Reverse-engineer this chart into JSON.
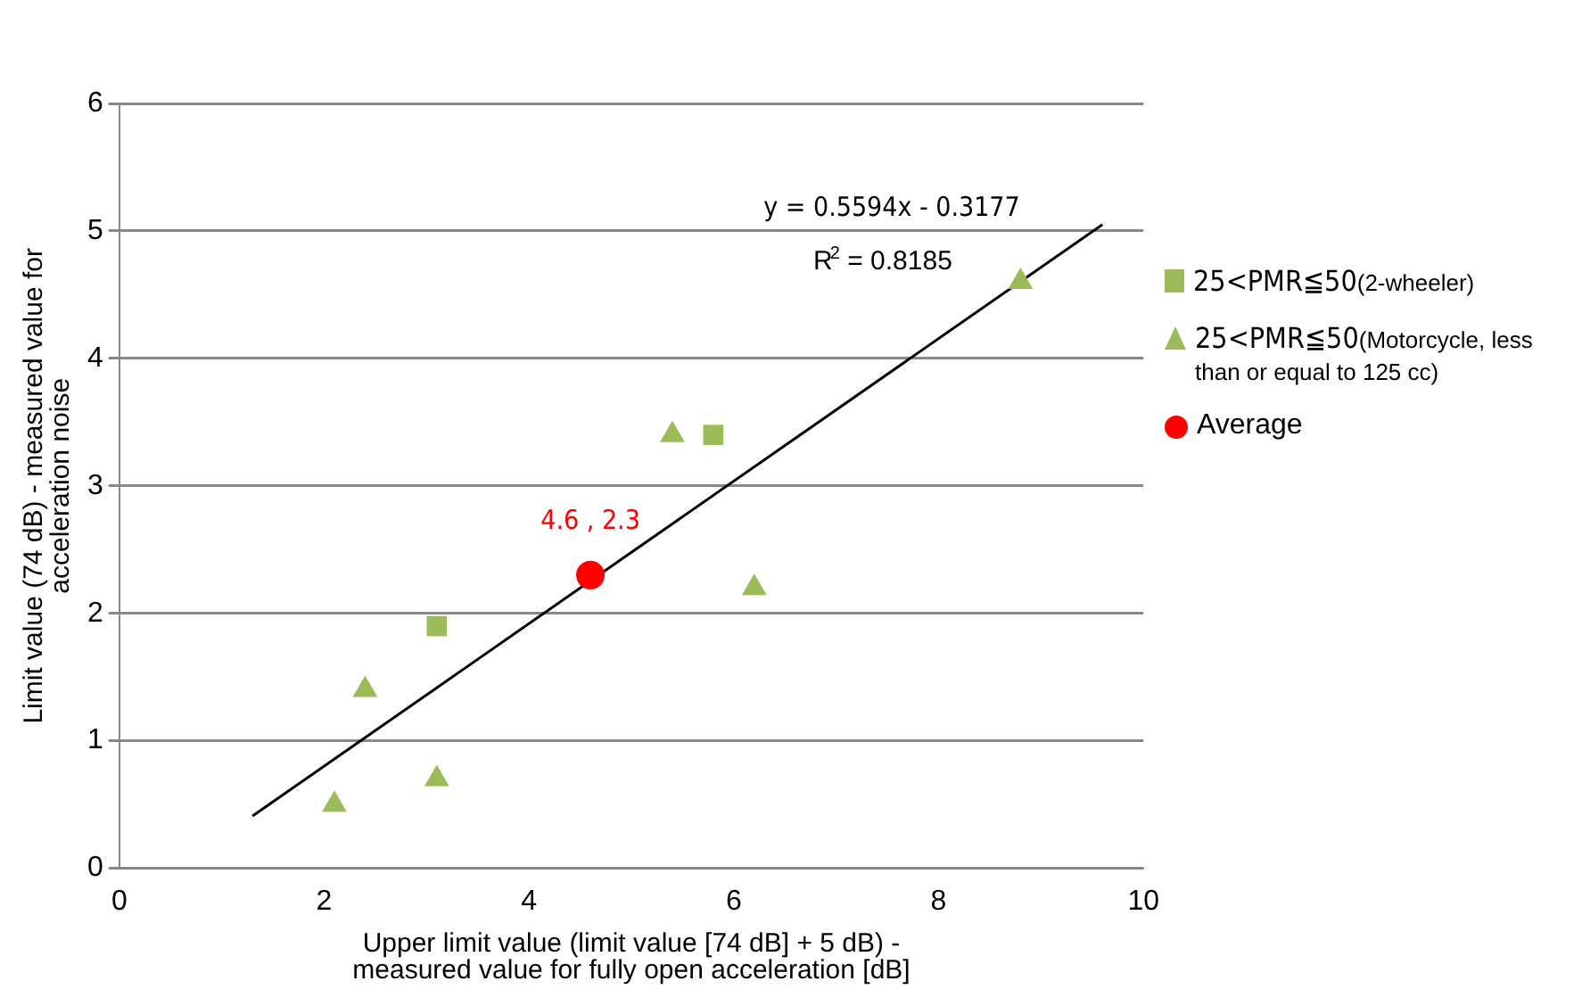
{
  "chart_data": {
    "type": "scatter",
    "xlabel": "Upper limit value (limit value [74 dB] + 5 dB) - measured value for fully open acceleration [dB]",
    "ylabel": "Limit value (74 dB) - measured value for acceleration noise",
    "xlim": [
      0,
      10
    ],
    "xticks": [
      0,
      2,
      4,
      6,
      8,
      10
    ],
    "ylim": [
      0,
      6
    ],
    "yticks": [
      0,
      1,
      2,
      3,
      4,
      5,
      6
    ],
    "grid": "y",
    "legend": "right",
    "series": [
      {
        "name": "25<PMR≦50(2-wheeler)",
        "color": "#9bbb59",
        "marker": "square",
        "x": [
          3.1,
          5.8
        ],
        "values": [
          1.9,
          3.4
        ]
      },
      {
        "name": "25<PMR≦50(Motorcycle, less than or equal to 125 cc)",
        "color": "#9bbb59",
        "marker": "triangle",
        "x": [
          2.4,
          2.1,
          3.1,
          5.4,
          6.2,
          8.8
        ],
        "values": [
          1.4,
          0.5,
          0.7,
          3.4,
          2.2,
          4.6
        ]
      },
      {
        "name": "Average",
        "color": "#ff0000",
        "marker": "circle",
        "x": [
          4.6
        ],
        "values": [
          2.3
        ]
      },
      {
        "type": "line",
        "color": "#000000",
        "marker": "none",
        "line_style": "solid",
        "x": [
          1.3,
          9.6
        ],
        "values": [
          0.41,
          5.05
        ]
      }
    ],
    "annotations": [
      {
        "text": "4.6 , 2.3",
        "x": 4.6,
        "y": 2.3
      },
      "y = 0.5594x - 0.3177",
      "R$^{2}$ = 0.8185"
    ]
  }
}
